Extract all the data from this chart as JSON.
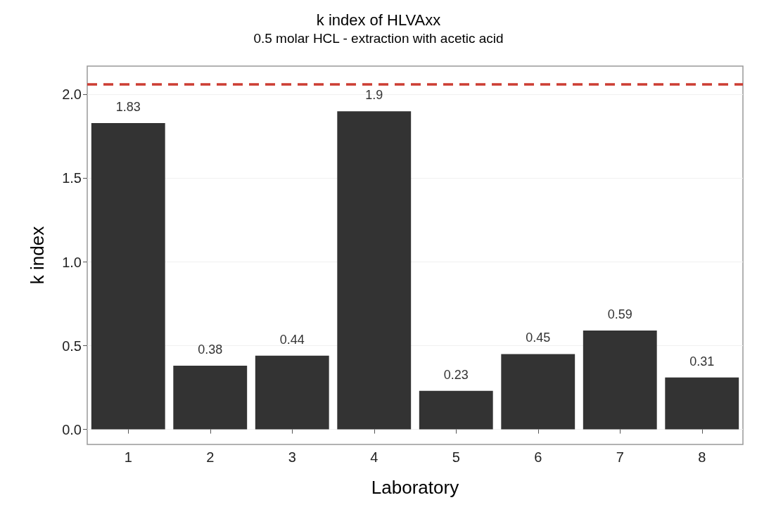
{
  "chart_data": {
    "type": "bar",
    "title": "k index of HLVAxx",
    "subtitle": "0.5 molar HCL - extraction with acetic acid",
    "xlabel": "Laboratory",
    "ylabel": "k index",
    "categories": [
      "1",
      "2",
      "3",
      "4",
      "5",
      "6",
      "7",
      "8"
    ],
    "values": [
      1.83,
      0.38,
      0.44,
      1.9,
      0.23,
      0.45,
      0.59,
      0.31
    ],
    "color": "#333333",
    "ylim": [
      -0.09,
      2.17
    ],
    "yticks": [
      {
        "value": 0,
        "label": "0.0"
      },
      {
        "value": 0.5,
        "label": "0.5"
      },
      {
        "value": 1,
        "label": "1.0"
      },
      {
        "value": 1.5,
        "label": "1.5"
      },
      {
        "value": 2,
        "label": "2.0"
      }
    ],
    "ref_lines": [
      {
        "axis": "y",
        "value": 2.06,
        "label": null,
        "color": "#cc3d33",
        "line_style": "dashed"
      }
    ],
    "grid": "y",
    "data_labels": true
  }
}
